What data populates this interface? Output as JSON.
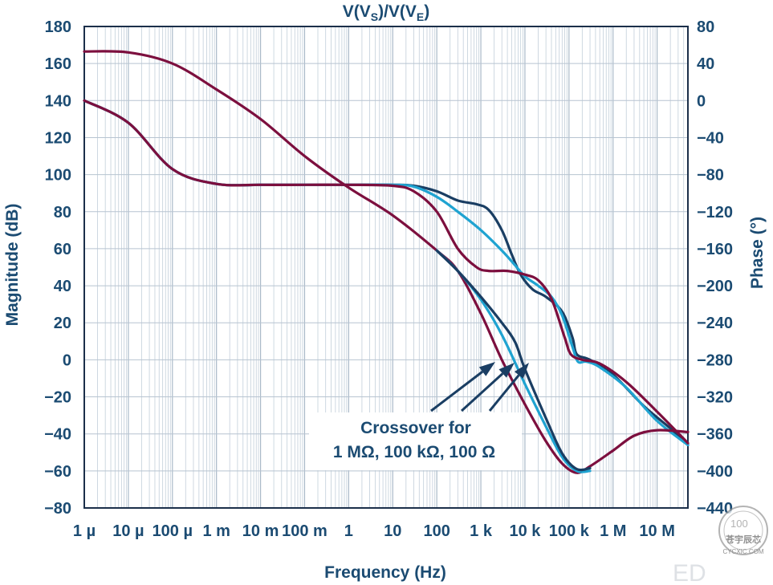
{
  "chart_data": {
    "type": "line",
    "title": "V(V_S)/V(V_E)",
    "title_parts": {
      "a": "V(V",
      "sub1": "S",
      "b": ")/V(V",
      "sub2": "E",
      "c": ")"
    },
    "xlabel": "Frequency (Hz)",
    "ylabel": "Magnitude (dB)",
    "y2label": "Phase (°)",
    "x_scale": "log",
    "xlim": [
      1e-06,
      50000000.0
    ],
    "ylim": [
      -80,
      180
    ],
    "y2lim": [
      -440,
      80
    ],
    "grid": true,
    "x_ticks": [
      {
        "v": 1e-06,
        "label": "1 µ"
      },
      {
        "v": 1e-05,
        "label": "10 µ"
      },
      {
        "v": 0.0001,
        "label": "100 µ"
      },
      {
        "v": 0.001,
        "label": "1 m"
      },
      {
        "v": 0.01,
        "label": "10 m"
      },
      {
        "v": 0.1,
        "label": "100 m"
      },
      {
        "v": 1,
        "label": "1"
      },
      {
        "v": 10,
        "label": "10"
      },
      {
        "v": 100,
        "label": "100"
      },
      {
        "v": 1000,
        "label": "1 k"
      },
      {
        "v": 10000,
        "label": "10 k"
      },
      {
        "v": 100000,
        "label": "100 k"
      },
      {
        "v": 1000000,
        "label": "1 M"
      },
      {
        "v": 10000000,
        "label": "10 M"
      }
    ],
    "y_ticks": [
      "180",
      "160",
      "140",
      "120",
      "100",
      "80",
      "60",
      "40",
      "20",
      "0",
      "−20",
      "−40",
      "−60",
      "−80"
    ],
    "y2_ticks": [
      "80",
      "40",
      "0",
      "−40",
      "−80",
      "−120",
      "−160",
      "−200",
      "−240",
      "−280",
      "−320",
      "−360",
      "−400",
      "−440"
    ],
    "series": [
      {
        "kind": "magnitude",
        "color": "#1a3e63",
        "width": 3.2,
        "points": [
          [
            1e-06,
            140
          ],
          [
            1e-05,
            128
          ],
          [
            0.0001,
            103
          ],
          [
            0.001,
            95
          ],
          [
            0.01,
            94.5
          ],
          [
            0.1,
            94.5
          ],
          [
            1,
            94.5
          ],
          [
            10,
            94.5
          ],
          [
            30,
            94
          ],
          [
            100,
            91
          ],
          [
            300,
            86
          ],
          [
            800,
            84
          ],
          [
            1500,
            81
          ],
          [
            3000,
            70
          ],
          [
            5000,
            57
          ],
          [
            8000,
            46
          ],
          [
            15000,
            38
          ],
          [
            30000,
            34
          ],
          [
            70000,
            26
          ],
          [
            120000,
            12
          ],
          [
            150000,
            3
          ],
          [
            300000,
            0
          ],
          [
            1000000.0,
            -8
          ],
          [
            5000000.0,
            -25
          ],
          [
            20000000.0,
            -37
          ],
          [
            50000000.0,
            -46
          ]
        ]
      },
      {
        "kind": "magnitude",
        "color": "#1fa3d1",
        "width": 3.2,
        "points": [
          [
            1e-06,
            140
          ],
          [
            1e-05,
            128
          ],
          [
            0.0001,
            103
          ],
          [
            0.001,
            95
          ],
          [
            0.01,
            94.5
          ],
          [
            0.1,
            94.5
          ],
          [
            1,
            94.5
          ],
          [
            10,
            94.5
          ],
          [
            30,
            93.5
          ],
          [
            100,
            88
          ],
          [
            300,
            80
          ],
          [
            1000,
            70
          ],
          [
            3000,
            59
          ],
          [
            6000,
            51
          ],
          [
            10000,
            45
          ],
          [
            20000,
            40
          ],
          [
            40000,
            34
          ],
          [
            70000,
            24
          ],
          [
            120000,
            7
          ],
          [
            160000,
            -1
          ],
          [
            250000,
            -1
          ],
          [
            500000,
            -4
          ],
          [
            2000000.0,
            -15
          ],
          [
            10000000.0,
            -33
          ],
          [
            50000000.0,
            -46
          ]
        ]
      },
      {
        "kind": "magnitude",
        "color": "#7c0f3e",
        "width": 3.2,
        "points": [
          [
            1e-06,
            140
          ],
          [
            1e-05,
            128
          ],
          [
            0.0001,
            103
          ],
          [
            0.001,
            95
          ],
          [
            0.01,
            94.5
          ],
          [
            0.1,
            94.5
          ],
          [
            1,
            94.5
          ],
          [
            10,
            94
          ],
          [
            30,
            91
          ],
          [
            100,
            80
          ],
          [
            300,
            60
          ],
          [
            800,
            50
          ],
          [
            1500,
            48
          ],
          [
            4000,
            48
          ],
          [
            10000,
            46
          ],
          [
            20000,
            43
          ],
          [
            40000,
            33
          ],
          [
            80000,
            12
          ],
          [
            110000,
            3
          ],
          [
            200000,
            0
          ],
          [
            500000,
            -2
          ],
          [
            2000000.0,
            -12
          ],
          [
            10000000.0,
            -28
          ],
          [
            50000000.0,
            -45
          ]
        ]
      },
      {
        "kind": "phase",
        "color": "#7c0f3e",
        "width": 3.2,
        "points": [
          [
            1e-06,
            53
          ],
          [
            1e-05,
            52
          ],
          [
            0.0001,
            40
          ],
          [
            0.001,
            12
          ],
          [
            0.01,
            -20
          ],
          [
            0.1,
            -60
          ],
          [
            1,
            -94
          ],
          [
            10,
            -124
          ],
          [
            100,
            -162
          ],
          [
            300,
            -184
          ],
          [
            1000,
            -230
          ],
          [
            3000,
            -280
          ],
          [
            10000,
            -328
          ],
          [
            30000,
            -368
          ],
          [
            70000,
            -392
          ],
          [
            150000,
            -402
          ],
          [
            300000,
            -395
          ],
          [
            1000000.0,
            -378
          ],
          [
            3000000.0,
            -362
          ],
          [
            10000000.0,
            -356
          ],
          [
            50000000.0,
            -358
          ]
        ]
      },
      {
        "kind": "phase",
        "color": "#1fa3d1",
        "width": 3.2,
        "points": [
          [
            100,
            -162
          ],
          [
            300,
            -184
          ],
          [
            1000,
            -215
          ],
          [
            3000,
            -253
          ],
          [
            10000,
            -306
          ],
          [
            30000,
            -352
          ],
          [
            70000,
            -385
          ],
          [
            150000,
            -400
          ],
          [
            300000,
            -400
          ]
        ]
      },
      {
        "kind": "phase",
        "color": "#1a3e63",
        "width": 3.2,
        "points": [
          [
            100,
            -162
          ],
          [
            300,
            -184
          ],
          [
            1000,
            -212
          ],
          [
            3000,
            -240
          ],
          [
            6000,
            -261
          ],
          [
            10000,
            -290
          ],
          [
            30000,
            -343
          ],
          [
            70000,
            -381
          ],
          [
            150000,
            -398
          ],
          [
            300000,
            -397
          ]
        ]
      }
    ],
    "annotation": {
      "line1": "Crossover for",
      "line2": "1 MΩ, 100 kΩ, 100 Ω",
      "arrow_color": "#1a3e63"
    }
  },
  "watermark": {
    "badge_top": "100",
    "badge_mid": "苍宇辰芯",
    "badge_url": "CYCXIC.COM",
    "corner_text": "ED"
  }
}
